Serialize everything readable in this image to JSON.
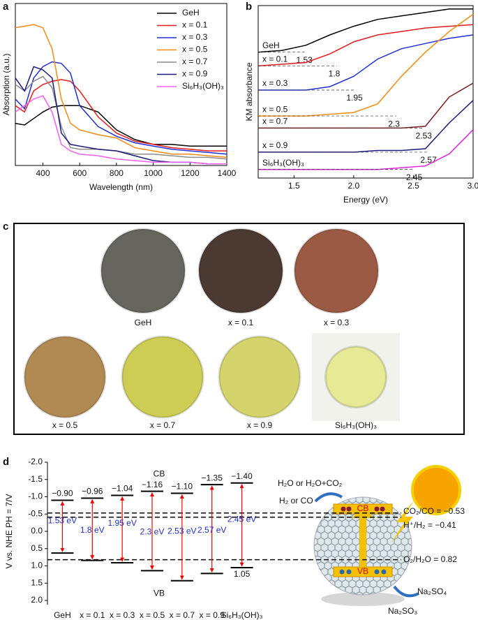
{
  "chart_data": [
    {
      "panel": "a",
      "type": "line",
      "xlabel": "Wavelength (nm)",
      "ylabel": "Absorption (a.u.)",
      "legend": "upper right",
      "xlim": [
        250,
        1400
      ],
      "xticks": [
        400,
        600,
        800,
        1000,
        1200,
        1400
      ],
      "ylim": [
        0,
        1
      ],
      "x": [
        250,
        300,
        350,
        400,
        450,
        500,
        550,
        600,
        700,
        800,
        900,
        1000,
        1100,
        1200,
        1300,
        1400
      ],
      "series": [
        {
          "name": "GeH",
          "color": "#000000",
          "values": [
            0.26,
            0.25,
            0.29,
            0.33,
            0.36,
            0.37,
            0.37,
            0.37,
            0.33,
            0.22,
            0.16,
            0.13,
            0.13,
            0.12,
            0.12,
            0.12
          ]
        },
        {
          "name": "x = 0.1",
          "color": "#e41a1c",
          "values": [
            0.37,
            0.33,
            0.46,
            0.5,
            0.52,
            0.53,
            0.52,
            0.46,
            0.3,
            0.2,
            0.15,
            0.13,
            0.11,
            0.1,
            0.09,
            0.09
          ]
        },
        {
          "name": "x = 0.3",
          "color": "#1f2fd6",
          "values": [
            0.41,
            0.35,
            0.54,
            0.61,
            0.64,
            0.63,
            0.57,
            0.37,
            0.24,
            0.18,
            0.14,
            0.12,
            0.1,
            0.09,
            0.08,
            0.07
          ]
        },
        {
          "name": "x = 0.5",
          "color": "#f28c13",
          "values": [
            0.85,
            0.86,
            0.87,
            0.85,
            0.72,
            0.41,
            0.26,
            0.22,
            0.19,
            0.17,
            0.11,
            0.09,
            0.07,
            0.07,
            0.06,
            0.05
          ]
        },
        {
          "name": "x = 0.7",
          "color": "#8c8c8c",
          "values": [
            0.5,
            0.46,
            0.52,
            0.55,
            0.48,
            0.24,
            0.11,
            0.1,
            0.1,
            0.09,
            0.07,
            0.07,
            0.06,
            0.05,
            0.05,
            0.04
          ]
        },
        {
          "name": "x = 0.9",
          "color": "#1a1a7a",
          "values": [
            0.54,
            0.46,
            0.61,
            0.59,
            0.54,
            0.2,
            0.13,
            0.12,
            0.1,
            0.09,
            0.06,
            0.03,
            0.02,
            0.02,
            0.01,
            0.01
          ]
        },
        {
          "name": "Si₆H₃(OH)₃",
          "color": "#f060f0",
          "values": [
            0.33,
            0.37,
            0.41,
            0.43,
            0.33,
            0.13,
            0.09,
            0.07,
            0.06,
            0.04,
            0.03,
            0.02,
            0.02,
            0.02,
            0.01,
            0.01
          ]
        }
      ]
    },
    {
      "panel": "b",
      "type": "line",
      "xlabel": "Energy (eV)",
      "ylabel": "KM absorbance",
      "legend": "on curves",
      "xlim": [
        1.2,
        3.0
      ],
      "xticks": [
        1.5,
        {
          "value": 2,
          "label": "2.0"
        },
        2.5,
        {
          "value": 3,
          "label": "3.0"
        }
      ],
      "ylim": [
        0,
        1
      ],
      "x": [
        1.2,
        1.4,
        1.6,
        1.8,
        2.0,
        2.2,
        2.4,
        2.6,
        2.8,
        3.0
      ],
      "series": [
        {
          "name": "GeH",
          "gap": 1.53,
          "color": "#000000",
          "values": [
            0.73,
            0.74,
            0.77,
            0.83,
            0.88,
            0.92,
            0.94,
            0.96,
            0.98,
            0.98
          ]
        },
        {
          "name": "x = 0.1",
          "gap": 1.8,
          "color": "#e41a1c",
          "values": [
            0.65,
            0.66,
            0.67,
            0.72,
            0.79,
            0.83,
            0.85,
            0.87,
            0.88,
            0.89
          ]
        },
        {
          "name": "x = 0.3",
          "gap": 1.95,
          "color": "#1f2fd6",
          "values": [
            0.51,
            0.51,
            0.51,
            0.53,
            0.59,
            0.69,
            0.75,
            0.78,
            0.81,
            0.83
          ]
        },
        {
          "name": "x = 0.5",
          "gap": 2.3,
          "color": "#f28c13",
          "values": [
            0.36,
            0.36,
            0.36,
            0.37,
            0.38,
            0.43,
            0.59,
            0.73,
            0.85,
            0.95
          ]
        },
        {
          "name": "x = 0.7",
          "gap": 2.53,
          "color": "#7a1a1a",
          "values": [
            0.29,
            0.29,
            0.29,
            0.29,
            0.29,
            0.29,
            0.29,
            0.3,
            0.47,
            0.55
          ]
        },
        {
          "name": "x = 0.9",
          "gap": 2.57,
          "color": "#1a1a7a",
          "values": [
            0.15,
            0.15,
            0.15,
            0.15,
            0.15,
            0.16,
            0.16,
            0.17,
            0.32,
            0.45
          ]
        },
        {
          "name": "Si₆H₃(OH)₃",
          "gap": 2.45,
          "color": "#e020e0",
          "values": [
            0.05,
            0.05,
            0.05,
            0.05,
            0.05,
            0.05,
            0.06,
            0.07,
            0.14,
            0.28
          ]
        }
      ]
    },
    {
      "panel": "d",
      "type": "band",
      "ylabel": "V vs. NHE PH = 7/V",
      "cb_label": "CB",
      "vb_label": "VB",
      "yinvert": true,
      "ylim": [
        -2,
        2
      ],
      "yticks": [
        {
          "value": -2,
          "label": "-2.0"
        },
        -1.5,
        {
          "value": -1,
          "label": "-1.0"
        },
        -0.5,
        {
          "value": 0,
          "label": "0.0"
        },
        0.5,
        {
          "value": 1,
          "label": "1.0"
        },
        1.5,
        {
          "value": 2,
          "label": "2.0"
        }
      ],
      "categories": [
        "GeH",
        "x = 0.1",
        "x = 0.3",
        "x = 0.5",
        "x = 0.7",
        "x = 0.9",
        "Si₆H₃(OH)₃"
      ],
      "cb": {
        "values": [
          -0.9,
          -0.96,
          -1.04,
          -1.16,
          -1.1,
          -1.35,
          -1.4
        ],
        "value_labels": [
          "−0.90",
          "−0.96",
          "−1.04",
          "−1.16",
          "−1.10",
          "−1.35",
          "−1.40"
        ]
      },
      "vb": {
        "values": [
          0.63,
          0.84,
          0.91,
          1.14,
          1.43,
          1.22,
          1.05
        ]
      },
      "gaps": {
        "values": [
          1.53,
          1.8,
          1.95,
          2.3,
          2.53,
          2.57,
          2.45
        ],
        "value_labels": [
          "1.53 eV",
          "1.8 eV",
          "1.95 eV",
          "2.3 eV",
          "2.53 eV",
          "2.57 eV",
          "2.45 eV"
        ]
      },
      "references": [
        {
          "label": "CO₂/CO = −0.53",
          "value": -0.53
        },
        {
          "label": "H⁺/H₂ = −0.41",
          "value": -0.41
        },
        {
          "label": "O₂/H₂O = 0.82",
          "value": 0.82
        }
      ],
      "illustration": {
        "reactant": "H₂O or H₂O+CO₂",
        "product": "H₂ or CO",
        "cb": "CB",
        "vb": "VB",
        "sacrificial": "Na₂SO₃",
        "oxidized": "Na₂SO₄"
      }
    }
  ],
  "photos": {
    "panel": "c",
    "items": [
      {
        "label": "GeH",
        "color": "#66665f"
      },
      {
        "label": "x = 0.1",
        "color": "#4b3a32"
      },
      {
        "label": "x = 0.3",
        "color": "#9b5a44"
      },
      {
        "label": "x = 0.5",
        "color": "#b08a52"
      },
      {
        "label": "x = 0.7",
        "color": "#cdcd55"
      },
      {
        "label": "x = 0.9",
        "color": "#d5d46c"
      },
      {
        "label": "Si₆H₃(OH)₃",
        "color": "#e6ea95"
      }
    ]
  }
}
